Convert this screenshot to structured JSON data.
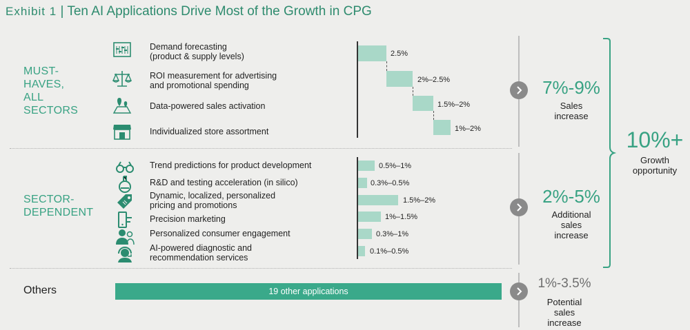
{
  "title": {
    "exhibit": "Exhibit 1",
    "separator": "|",
    "text": "Ten AI Applications Drive Most of the Growth in CPG"
  },
  "sections": {
    "must_haves": {
      "label_lines": [
        "MUST-",
        "HAVES,",
        "ALL",
        "SECTORS"
      ],
      "summary_value": "7%-9%",
      "summary_lines": [
        "Sales",
        "increase"
      ]
    },
    "sector_dependent": {
      "label_lines": [
        "SECTOR-",
        "DEPENDENT"
      ],
      "summary_value": "2%-5%",
      "summary_lines": [
        "Additional",
        "sales",
        "increase"
      ]
    },
    "others": {
      "label": "Others",
      "bar_label": "19 other applications",
      "summary_value": "1%-3.5%",
      "summary_lines": [
        "Potential",
        "sales",
        "increase"
      ]
    }
  },
  "total": {
    "value": "10%+",
    "lines": [
      "Growth",
      "opportunity"
    ]
  },
  "apps": [
    {
      "icon": "dashboard-icon",
      "lines": [
        "Demand forecasting",
        "(product & supply levels)"
      ],
      "value_label": "2.5%"
    },
    {
      "icon": "scales-icon",
      "lines": [
        "ROI measurement for advertising",
        "and promotional spending"
      ],
      "value_label": "2%–2.5%"
    },
    {
      "icon": "map-pin-icon",
      "lines": [
        "Data-powered sales activation"
      ],
      "value_label": "1.5%–2%"
    },
    {
      "icon": "store-icon",
      "lines": [
        "Individualized store assortment"
      ],
      "value_label": "1%–2%"
    },
    {
      "icon": "binoculars-icon",
      "lines": [
        "Trend predictions for product development"
      ],
      "value_label": "0.5%–1%"
    },
    {
      "icon": "flask-icon",
      "lines": [
        "R&D and testing acceleration (in silico)"
      ],
      "value_label": "0.3%–0.5%"
    },
    {
      "icon": "price-tag-icon",
      "lines": [
        "Dynamic, localized, personalized",
        "pricing and promotions"
      ],
      "value_label": "1.5%–2%"
    },
    {
      "icon": "mobile-target-icon",
      "lines": [
        "Precision marketing"
      ],
      "value_label": "1%–1.5%"
    },
    {
      "icon": "people-icon",
      "lines": [
        "Personalized consumer engagement"
      ],
      "value_label": "0.3%–1%"
    },
    {
      "icon": "headset-icon",
      "lines": [
        "AI-powered diagnostic and",
        "recommendation services"
      ],
      "value_label": "0.1%–0.5%"
    }
  ],
  "chart_data": {
    "type": "bar",
    "categories": [
      "Demand forecasting (product & supply levels)",
      "ROI measurement for advertising and promotional spending",
      "Data-powered sales activation",
      "Individualized store assortment",
      "Trend predictions for product development",
      "R&D and testing acceleration (in silico)",
      "Dynamic, localized, personalized pricing and promotions",
      "Precision marketing",
      "Personalized consumer engagement",
      "AI-powered diagnostic and recommendation services"
    ],
    "value_ranges": [
      [
        2.5,
        2.5
      ],
      [
        2.0,
        2.5
      ],
      [
        1.5,
        2.0
      ],
      [
        1.0,
        2.0
      ],
      [
        0.5,
        1.0
      ],
      [
        0.3,
        0.5
      ],
      [
        1.5,
        2.0
      ],
      [
        1.0,
        1.5
      ],
      [
        0.3,
        1.0
      ],
      [
        0.1,
        0.5
      ]
    ],
    "must_haves_waterfall": true,
    "totals": {
      "must_haves": "7%-9%",
      "sector_dependent": "2%-5%",
      "others": "1%-3.5%",
      "overall": "10%+"
    }
  },
  "colors": {
    "accent": "#38a283",
    "bar": "#a9d8c8",
    "dark_bar": "#3aa98a",
    "chevron": "#8a8a8a"
  }
}
